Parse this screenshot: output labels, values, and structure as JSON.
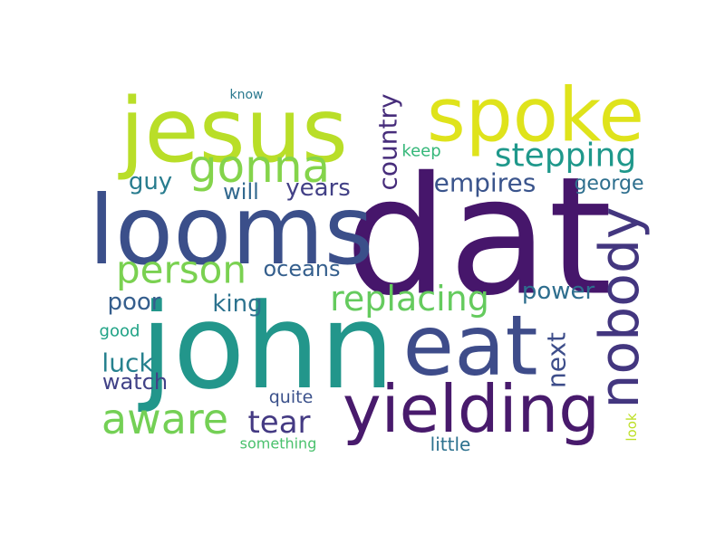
{
  "words": [
    {
      "text": "dat",
      "color": "#46166b"
    },
    {
      "text": "john",
      "color": "#22968b"
    },
    {
      "text": "looms",
      "color": "#3b4f8a"
    },
    {
      "text": "jesus",
      "color": "#b9de28"
    },
    {
      "text": "spoke",
      "color": "#dfe31b"
    },
    {
      "text": "eat",
      "color": "#3e4c8a"
    },
    {
      "text": "yielding",
      "color": "#481a6c"
    },
    {
      "text": "nobody",
      "color": "#43367f"
    },
    {
      "text": "gonna",
      "color": "#84d44b"
    },
    {
      "text": "person",
      "color": "#7ad151"
    },
    {
      "text": "aware",
      "color": "#74d055"
    },
    {
      "text": "replacing",
      "color": "#65cb5e"
    },
    {
      "text": "stepping",
      "color": "#1f988b"
    },
    {
      "text": "tear",
      "color": "#443a83"
    },
    {
      "text": "country",
      "color": "#472d7b"
    },
    {
      "text": "empires",
      "color": "#3a548c"
    },
    {
      "text": "oceans",
      "color": "#355f8d"
    },
    {
      "text": "next",
      "color": "#3d4d8a"
    },
    {
      "text": "king",
      "color": "#2c728e"
    },
    {
      "text": "poor",
      "color": "#355e8d"
    },
    {
      "text": "power",
      "color": "#2e6e8e"
    },
    {
      "text": "luck",
      "color": "#26818e"
    },
    {
      "text": "years",
      "color": "#424086"
    },
    {
      "text": "will",
      "color": "#31688e"
    },
    {
      "text": "guy",
      "color": "#287c8e"
    },
    {
      "text": "george",
      "color": "#2e6f8e"
    },
    {
      "text": "watch",
      "color": "#414287"
    },
    {
      "text": "quite",
      "color": "#3b518b"
    },
    {
      "text": "little",
      "color": "#2c718e"
    },
    {
      "text": "keep",
      "color": "#35b779"
    },
    {
      "text": "good",
      "color": "#20a386"
    },
    {
      "text": "something",
      "color": "#4ac16d"
    },
    {
      "text": "know",
      "color": "#2a788e"
    },
    {
      "text": "look",
      "color": "#bddf26"
    }
  ]
}
